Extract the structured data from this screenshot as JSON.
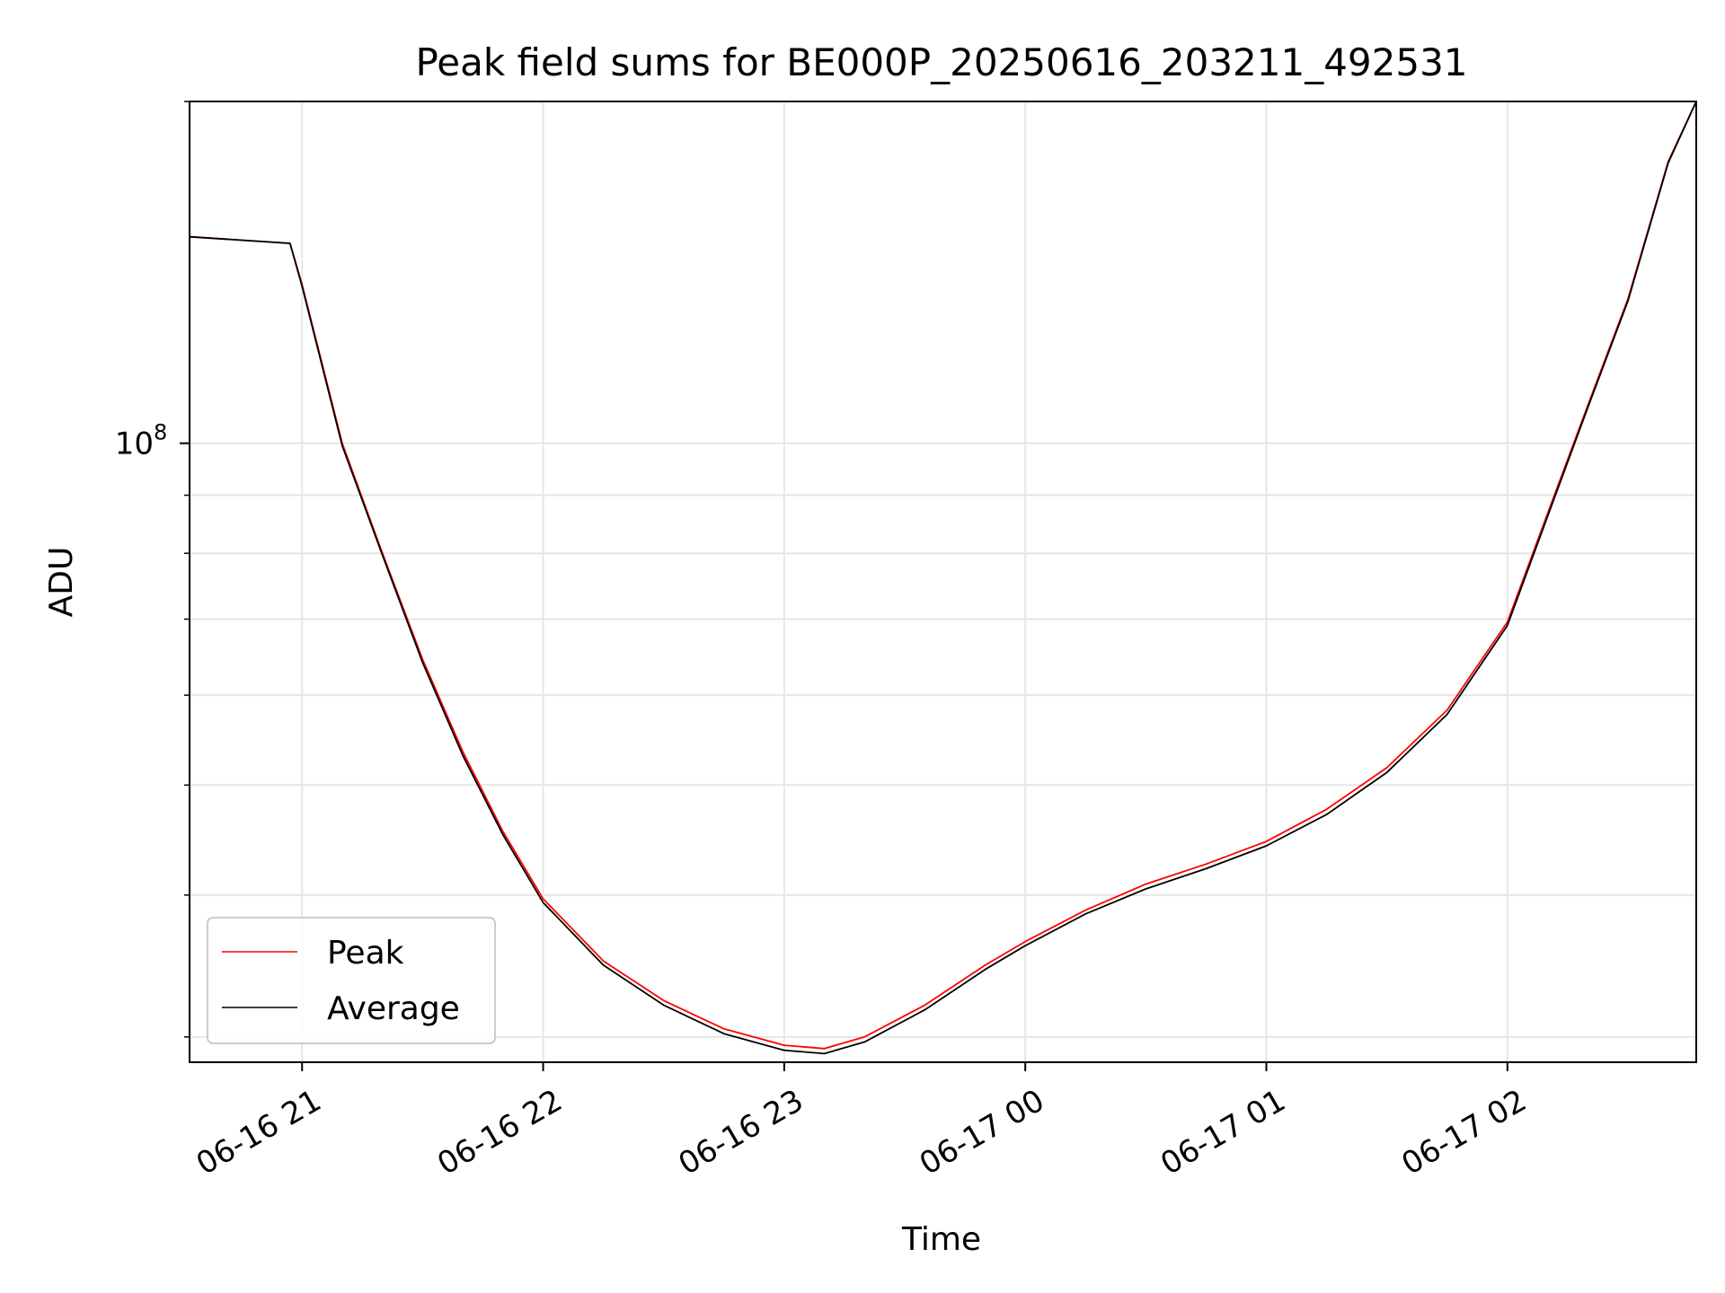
{
  "chart_data": {
    "type": "line",
    "title": "Peak field sums for BE000P_20250616_203211_492531",
    "xlabel": "Time",
    "ylabel": "ADU",
    "yscale": "log",
    "xlim": [
      "2025-06-16 20:32",
      "2025-06-17 02:47"
    ],
    "ylim": [
      28500000,
      200000000
    ],
    "x_ticks": [
      "06-16 21",
      "06-16 22",
      "06-16 23",
      "06-17 00",
      "06-17 01",
      "06-17 02"
    ],
    "y_major_tick_value": 100000000,
    "y_major_tick_label": {
      "base": "10",
      "exponent": "8"
    },
    "grid": true,
    "legend_position": "lower-left",
    "series": [
      {
        "name": "Peak",
        "color": "#ff0000",
        "x": [
          "2025-06-16 20:32",
          "2025-06-16 20:57",
          "2025-06-16 21:00",
          "2025-06-16 21:10",
          "2025-06-16 21:20",
          "2025-06-16 21:30",
          "2025-06-16 21:40",
          "2025-06-16 21:50",
          "2025-06-16 22:00",
          "2025-06-16 22:15",
          "2025-06-16 22:30",
          "2025-06-16 22:45",
          "2025-06-16 23:00",
          "2025-06-16 23:10",
          "2025-06-16 23:20",
          "2025-06-16 23:35",
          "2025-06-16 23:50",
          "2025-06-17 00:00",
          "2025-06-17 00:15",
          "2025-06-17 00:30",
          "2025-06-17 00:45",
          "2025-06-17 01:00",
          "2025-06-17 01:15",
          "2025-06-17 01:30",
          "2025-06-17 01:45",
          "2025-06-17 02:00",
          "2025-06-17 02:10",
          "2025-06-17 02:20",
          "2025-06-17 02:30",
          "2025-06-17 02:40",
          "2025-06-17 02:47"
        ],
        "y": [
          152000000,
          150000000,
          138000000,
          100000000,
          80000000,
          64500000,
          53500000,
          45500000,
          39700000,
          35000000,
          32300000,
          30500000,
          29500000,
          29300000,
          30000000,
          32000000,
          34700000,
          36400000,
          38800000,
          40900000,
          42600000,
          44600000,
          47600000,
          51800000,
          58200000,
          69600000,
          86700000,
          108000000,
          134000000,
          177000000,
          200000000
        ]
      },
      {
        "name": "Average",
        "color": "#000000",
        "x": [
          "2025-06-16 20:32",
          "2025-06-16 20:57",
          "2025-06-16 21:00",
          "2025-06-16 21:10",
          "2025-06-16 21:20",
          "2025-06-16 21:30",
          "2025-06-16 21:40",
          "2025-06-16 21:50",
          "2025-06-16 22:00",
          "2025-06-16 22:15",
          "2025-06-16 22:30",
          "2025-06-16 22:45",
          "2025-06-16 23:00",
          "2025-06-16 23:10",
          "2025-06-16 23:20",
          "2025-06-16 23:35",
          "2025-06-16 23:50",
          "2025-06-17 00:00",
          "2025-06-17 00:15",
          "2025-06-17 00:30",
          "2025-06-17 00:45",
          "2025-06-17 01:00",
          "2025-06-17 01:15",
          "2025-06-17 01:30",
          "2025-06-17 01:45",
          "2025-06-17 02:00",
          "2025-06-17 02:10",
          "2025-06-17 02:20",
          "2025-06-17 02:30",
          "2025-06-17 02:40",
          "2025-06-17 02:47"
        ],
        "y": [
          152000000,
          150000000,
          137500000,
          99500000,
          79700000,
          64100000,
          53100000,
          45200000,
          39400000,
          34700000,
          32000000,
          30200000,
          29200000,
          29000000,
          29700000,
          31700000,
          34400000,
          36100000,
          38500000,
          40500000,
          42200000,
          44200000,
          47100000,
          51300000,
          57700000,
          69100000,
          86200000,
          107500000,
          133500000,
          176500000,
          200000000
        ]
      }
    ]
  }
}
